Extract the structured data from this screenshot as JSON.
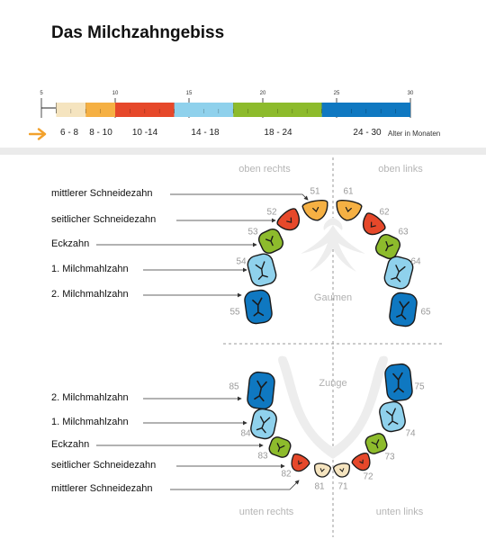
{
  "title": "Das Milchzahngebiss",
  "colors": {
    "range1": "#f5e4bf",
    "range2": "#f5b043",
    "range3": "#e6482a",
    "range4": "#8fd1ec",
    "range5": "#8dbb2c",
    "range6": "#0f78c1"
  },
  "timeline": {
    "ticks": [
      "5",
      "10",
      "15",
      "20",
      "25",
      "30"
    ],
    "ranges": [
      {
        "label": "6 - 8",
        "from": 6,
        "to": 8,
        "color": "#f5e4bf"
      },
      {
        "label": "8 - 10",
        "from": 8,
        "to": 10,
        "color": "#f5b043"
      },
      {
        "label": "10 -14",
        "from": 10,
        "to": 14,
        "color": "#e6482a"
      },
      {
        "label": "14 - 18",
        "from": 14,
        "to": 18,
        "color": "#8fd1ec"
      },
      {
        "label": "18 - 24",
        "from": 18,
        "to": 24,
        "color": "#8dbb2c"
      },
      {
        "label": "24 - 30",
        "from": 24,
        "to": 30,
        "color": "#0f78c1"
      }
    ],
    "unit_label": "Alter in Monaten",
    "arrow_icon": "arrow-right-icon"
  },
  "quadrants": {
    "upper_right": "oben rechts",
    "upper_left": "oben links",
    "lower_right": "unten rechts",
    "lower_left": "unten links"
  },
  "regions": {
    "palate": "Gaumen",
    "tongue": "Zunge"
  },
  "upper_labels": [
    "mittlerer Schneidezahn",
    "seitlicher Schneidezahn",
    "Eckzahn",
    "1. Milchmahlzahn",
    "2. Milchmahlzahn"
  ],
  "lower_labels": [
    "2. Milchmahlzahn",
    "1. Milchmahlzahn",
    "Eckzahn",
    "seitlicher Schneidezahn",
    "mittlerer Schneidezahn"
  ],
  "tooth_numbers": {
    "t51": "51",
    "t52": "52",
    "t53": "53",
    "t54": "54",
    "t55": "55",
    "t61": "61",
    "t62": "62",
    "t63": "63",
    "t64": "64",
    "t65": "65",
    "t71": "71",
    "t72": "72",
    "t73": "73",
    "t74": "74",
    "t75": "75",
    "t81": "81",
    "t82": "82",
    "t83": "83",
    "t84": "84",
    "t85": "85"
  }
}
